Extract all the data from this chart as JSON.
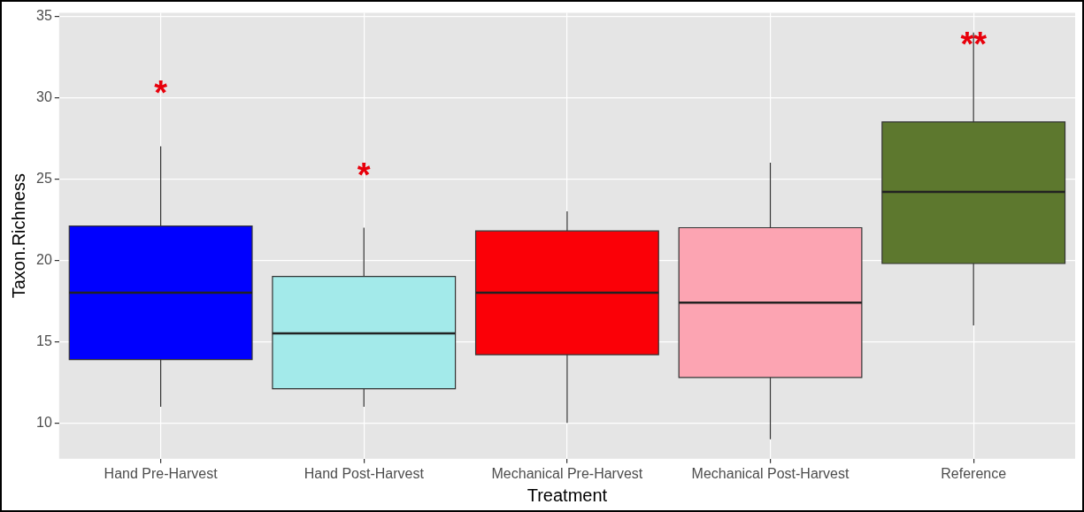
{
  "chart_data": {
    "type": "box",
    "xlabel": "Treatment",
    "ylabel": "Taxon.Richness",
    "categories": [
      "Hand Pre-Harvest",
      "Hand Post-Harvest",
      "Mechanical Pre-Harvest",
      "Mechanical Post-Harvest",
      "Reference"
    ],
    "boxes": [
      {
        "low": 11,
        "q1": 13.9,
        "median": 18,
        "q3": 22.1,
        "high": 27
      },
      {
        "low": 11,
        "q1": 12.1,
        "median": 15.5,
        "q3": 19,
        "high": 22
      },
      {
        "low": 10,
        "q1": 14.2,
        "median": 18,
        "q3": 21.8,
        "high": 23
      },
      {
        "low": 9,
        "q1": 12.8,
        "median": 17.4,
        "q3": 22,
        "high": 26
      },
      {
        "low": 16,
        "q1": 19.8,
        "median": 24.2,
        "q3": 28.5,
        "high": 34
      }
    ],
    "colors": [
      "#0000ff",
      "#a3eaea",
      "#fb0007",
      "#fca4b2",
      "#5d782e"
    ],
    "ylim": [
      7.8,
      35.2
    ],
    "yticks": [
      10,
      15,
      20,
      25,
      30,
      35
    ],
    "grid": true,
    "annotations": [
      "*",
      "*",
      "**"
    ]
  }
}
